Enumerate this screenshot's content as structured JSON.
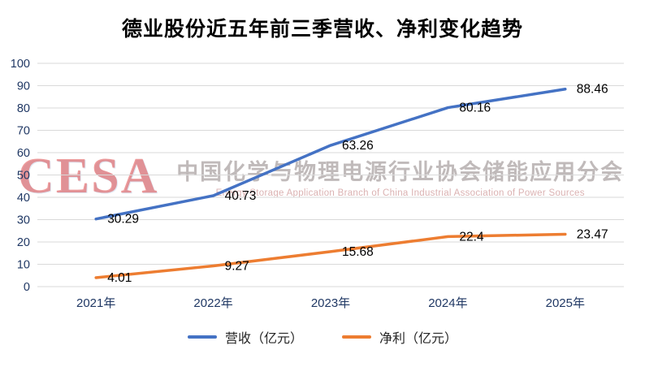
{
  "watermark": {
    "logo": "CESA",
    "cn": "中国化学与物理电源行业协会储能应用分会",
    "en": "Energy Storage Application Branch of China Industrial Association of Power Sources"
  },
  "chart_data": {
    "type": "line",
    "title": "德业股份近五年前三季营收、净利变化趋势",
    "categories": [
      "2021年",
      "2022年",
      "2023年",
      "2024年",
      "2025年"
    ],
    "series": [
      {
        "name": "营收（亿元）",
        "color": "#4472C4",
        "values": [
          30.29,
          40.73,
          63.26,
          80.16,
          88.46
        ],
        "labels": [
          "30.29",
          "40.73",
          "63.26",
          "80.16",
          "88.46"
        ]
      },
      {
        "name": "净利（亿元）",
        "color": "#ED7D31",
        "values": [
          4.01,
          9.27,
          15.68,
          22.4,
          23.47
        ],
        "labels": [
          "4.01",
          "9.27",
          "15.68",
          "22.4",
          "23.47"
        ]
      }
    ],
    "ylim": [
      0,
      100
    ],
    "ytick_step": 10,
    "grid": true,
    "legend_position": "bottom",
    "axis_label_color": "#203864",
    "gridline_color": "#D9D9D9",
    "data_label_color": "#000000"
  }
}
